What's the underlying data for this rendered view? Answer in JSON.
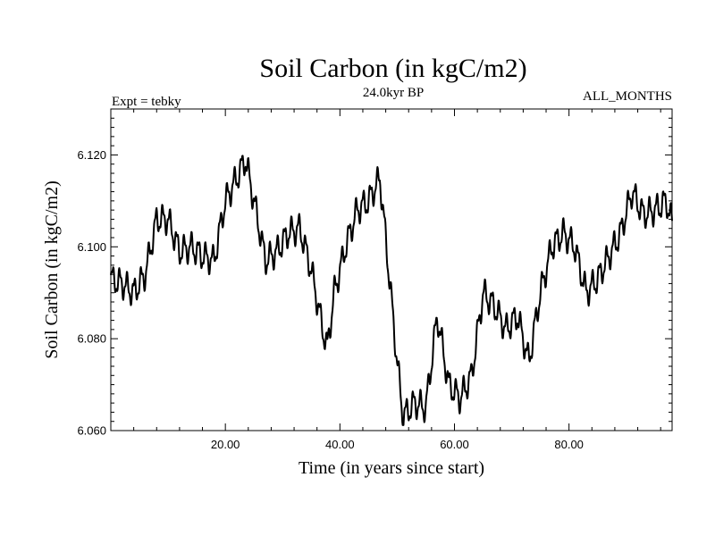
{
  "chart_data": {
    "type": "line",
    "title": "Soil Carbon (in kgC/m2)",
    "subtitle": "24.0kyr BP",
    "left_label": "Expt = tebky",
    "right_label": "ALL_MONTHS",
    "xlabel": "Time (in years since start)",
    "ylabel": "Soil Carbon (in kgC/m2)",
    "xlim": [
      0,
      98
    ],
    "ylim": [
      6.06,
      6.13
    ],
    "x_ticks": [
      20,
      40,
      60,
      80
    ],
    "x_tick_labels": [
      "20.00",
      "40.00",
      "60.00",
      "80.00"
    ],
    "y_ticks": [
      6.06,
      6.08,
      6.1,
      6.12
    ],
    "y_tick_labels": [
      "6.060",
      "6.080",
      "6.100",
      "6.120"
    ],
    "grid": false,
    "series": [
      {
        "name": "Soil Carbon",
        "color": "#000000",
        "x": [
          0,
          2,
          4,
          6,
          8,
          10,
          12,
          14,
          16,
          18,
          20,
          22,
          23.5,
          25,
          27,
          29,
          31,
          33,
          35,
          37,
          37.8,
          39,
          41,
          43,
          45,
          47,
          48.5,
          50,
          51,
          53,
          55,
          57,
          59,
          61,
          63,
          65,
          67,
          69,
          71,
          73,
          75,
          77,
          79,
          81,
          83,
          85,
          87,
          89,
          91,
          93,
          95,
          97,
          98
        ],
        "values": [
          6.093,
          6.092,
          6.09,
          6.094,
          6.106,
          6.106,
          6.099,
          6.1,
          6.098,
          6.097,
          6.11,
          6.115,
          6.119,
          6.11,
          6.097,
          6.099,
          6.103,
          6.104,
          6.095,
          6.082,
          6.078,
          6.09,
          6.1,
          6.108,
          6.11,
          6.115,
          6.095,
          6.075,
          6.063,
          6.066,
          6.065,
          6.085,
          6.07,
          6.067,
          6.072,
          6.09,
          6.087,
          6.082,
          6.085,
          6.075,
          6.09,
          6.1,
          6.103,
          6.1,
          6.09,
          6.093,
          6.098,
          6.103,
          6.112,
          6.107,
          6.108,
          6.11,
          6.105
        ]
      }
    ]
  }
}
